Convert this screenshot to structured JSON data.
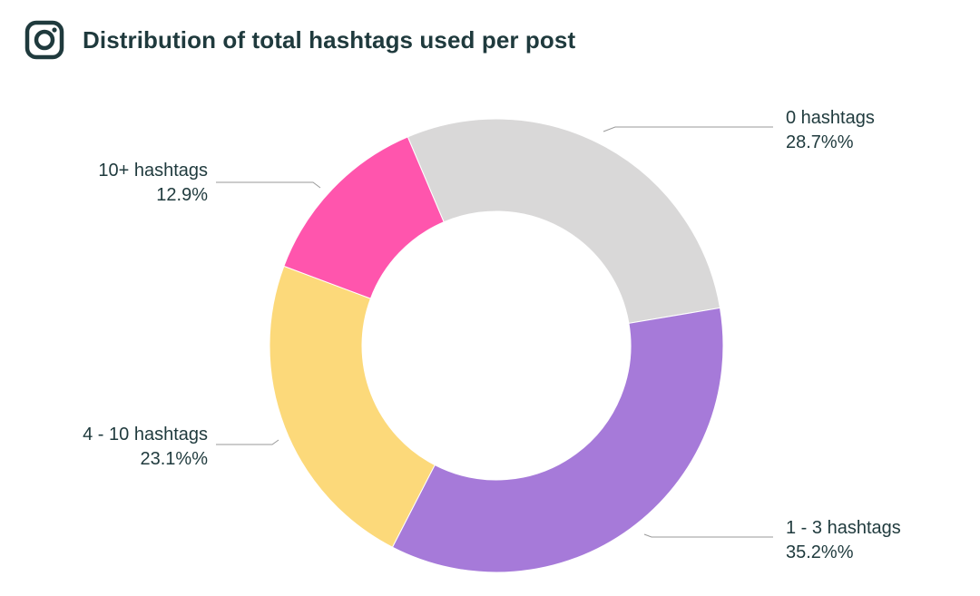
{
  "header": {
    "title": "Distribution of total hashtags used per post",
    "icon": "instagram-icon"
  },
  "chart_data": {
    "type": "pie",
    "donut": true,
    "slices": [
      {
        "label": "0 hashtags",
        "value_text": "28.7%%",
        "value": 28.7,
        "color": "#d9d8d8"
      },
      {
        "label": "1 - 3 hashtags",
        "value_text": "35.2%%",
        "value": 35.2,
        "color": "#a67ad9"
      },
      {
        "label": "4 - 10 hashtags",
        "value_text": "23.1%%",
        "value": 23.1,
        "color": "#fcd97a"
      },
      {
        "label": "10+ hashtags",
        "value_text": "12.9%",
        "value": 12.9,
        "color": "#ff55ad"
      }
    ],
    "colors": {
      "text": "#1f3a3d",
      "leader": "#9a9a9a"
    }
  }
}
